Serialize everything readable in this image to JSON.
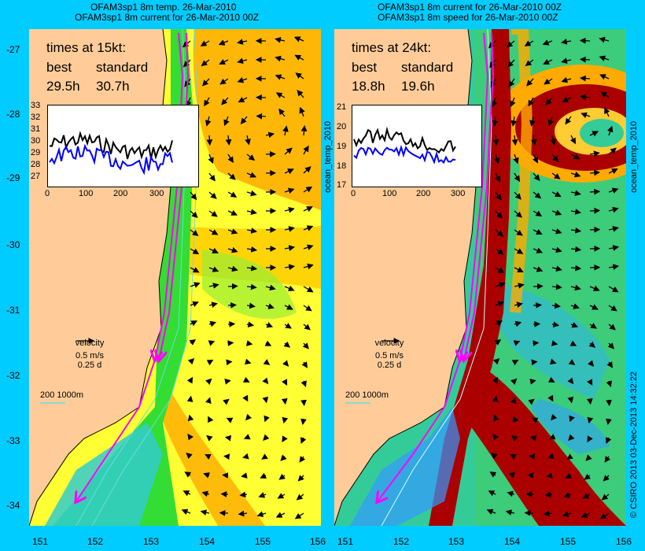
{
  "panels": [
    {
      "title_line1": "OFAM3sp1 8m temp. 26-Mar-2010",
      "title_line2": "OFAM3sp1 8m current for 26-Mar-2010 00Z",
      "times_heading": "times at 15kt:",
      "col_best": "best",
      "col_standard": "standard",
      "val_best": "29.5h",
      "val_standard": "30.7h",
      "inset_yticks": [
        "33",
        "32",
        "31",
        "30",
        "29",
        "28",
        "27"
      ],
      "inset_xticks": [
        "0",
        "100",
        "200",
        "300"
      ],
      "velocity_label": "velocity",
      "velocity_speed": "0.5 m/s",
      "velocity_time": "0.25 d",
      "isobath_label": "200  1000m"
    },
    {
      "title_line1": "OFAM3sp1 8m current for 26-Mar-2010 00Z",
      "title_line2": "OFAM3sp1 8m speed for 26-Mar-2010 00Z",
      "times_heading": "times at 24kt:",
      "col_best": "best",
      "col_standard": "standard",
      "val_best": "18.8h",
      "val_standard": "19.6h",
      "inset_yticks": [
        "21",
        "20",
        "19",
        "18",
        "17"
      ],
      "inset_xticks": [
        "0",
        "100",
        "200",
        "300"
      ],
      "velocity_label": "velocity",
      "velocity_speed": "0.5 m/s",
      "velocity_time": "0.25 d",
      "isobath_label": "200  1000m"
    }
  ],
  "lat_ticks": [
    "-27",
    "-28",
    "-29",
    "-30",
    "-31",
    "-32",
    "-33",
    "-34"
  ],
  "lon_ticks": [
    "151",
    "152",
    "153",
    "154",
    "155",
    "156"
  ],
  "side_label": "ocean_temp_2010",
  "credit": "© CSIRO 2013   03-Dec-2013 14:32:22",
  "colors": {
    "background": "#00ccff",
    "land": "#ffcc99",
    "warm_orange": "#ffaa00",
    "yellow": "#ffff33",
    "green": "#33dd33",
    "cyan": "#33cccc",
    "dark_red": "#aa0000",
    "track_magenta": "#ff00ff",
    "inset_best": "#000000",
    "inset_standard": "#0000ff"
  }
}
